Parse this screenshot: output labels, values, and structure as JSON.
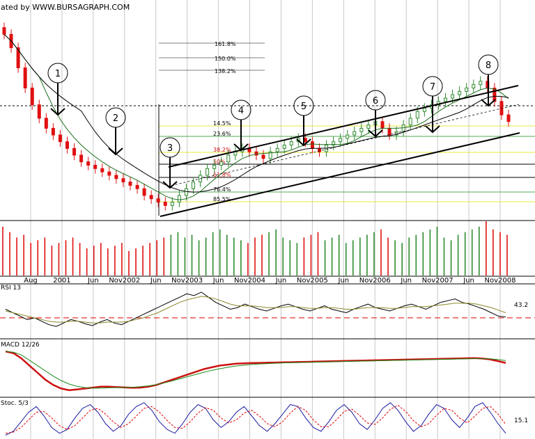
{
  "header": {
    "watermark": "ated by WWW.BURSAGRAPH.COM"
  },
  "panels": {
    "rsi_label": "RSI 13",
    "rsi_value": "43.2",
    "macd_label": "MACD 12/26",
    "stoc_label": "Stoc. 5/3",
    "stoc_value": "15.1"
  },
  "colors": {
    "up_candle": "#2e8b2e",
    "down_candle": "#e01010",
    "ma_short": "#1a6e1a",
    "ma_long": "#000000",
    "fib_lines": "#000000",
    "highlight_lines": "#e8e840",
    "rsi_line": "#000000",
    "rsi_signal": "#8a8a2a",
    "rsi_reference": "#e00000",
    "macd_line": "#cc1111",
    "macd_signal": "#1a8a1a",
    "stoc_k": "#1a1aa0",
    "stoc_d": "#e00000"
  },
  "chart_data": {
    "type": "candlestick",
    "x_ticks": [
      "Aug",
      "2001",
      "Jun",
      "Nov2002",
      "Jun",
      "Nov2003",
      "Jun",
      "Nov2004",
      "Jun",
      "Nov2005",
      "Jun",
      "Nov2006",
      "Jun",
      "Nov2007",
      "Jun",
      "Nov2008"
    ],
    "fib_upper": [
      {
        "label": "161.8%"
      },
      {
        "label": "150.0%"
      },
      {
        "label": "138.2%"
      }
    ],
    "fib_lower": [
      {
        "label": "14.5%"
      },
      {
        "label": "23.6%"
      },
      {
        "label": "38.2%"
      },
      {
        "label": "50%"
      },
      {
        "label": "61.8%"
      },
      {
        "label": "76.4%"
      },
      {
        "label": "85.5%"
      }
    ],
    "wave_markers": [
      "1",
      "2",
      "3",
      "4",
      "5",
      "6",
      "7",
      "8"
    ],
    "closes": [
      86,
      82,
      76,
      70,
      65,
      61,
      58,
      56,
      54,
      52,
      50,
      48,
      47,
      46,
      45,
      44,
      43,
      42,
      41,
      40,
      38,
      37,
      36,
      35,
      36,
      38,
      40,
      42,
      44,
      46,
      47,
      48,
      50,
      51,
      52,
      51,
      50,
      49,
      51,
      52,
      53,
      54,
      55,
      54,
      52,
      51,
      53,
      54,
      55,
      56,
      57,
      58,
      59,
      60,
      58,
      56,
      57,
      59,
      61,
      63,
      64,
      65,
      66,
      67,
      68,
      69,
      70,
      71,
      72,
      70,
      66,
      62,
      60
    ],
    "volume_relative": [
      0.9,
      0.8,
      0.7,
      0.75,
      0.6,
      0.65,
      0.7,
      0.55,
      0.6,
      0.65,
      0.7,
      0.6,
      0.5,
      0.55,
      0.6,
      0.5,
      0.55,
      0.6,
      0.45,
      0.5,
      0.55,
      0.6,
      0.65,
      0.7,
      0.75,
      0.8,
      0.7,
      0.75,
      0.65,
      0.7,
      0.8,
      0.85,
      0.75,
      0.7,
      0.65,
      0.6,
      0.7,
      0.75,
      0.8,
      0.85,
      0.7,
      0.65,
      0.6,
      0.7,
      0.75,
      0.8,
      0.65,
      0.7,
      0.75,
      0.6,
      0.65,
      0.7,
      0.75,
      0.8,
      0.85,
      0.7,
      0.65,
      0.6,
      0.7,
      0.75,
      0.8,
      0.85,
      0.9,
      0.7,
      0.65,
      0.75,
      0.8,
      0.85,
      0.9,
      1.0,
      0.85,
      0.8,
      0.75
    ],
    "rsi": [
      52,
      48,
      44,
      40,
      42,
      38,
      34,
      32,
      36,
      40,
      38,
      35,
      33,
      37,
      40,
      36,
      34,
      38,
      42,
      46,
      50,
      54,
      58,
      62,
      66,
      70,
      68,
      72,
      66,
      60,
      56,
      52,
      54,
      58,
      55,
      52,
      50,
      53,
      56,
      58,
      55,
      52,
      50,
      53,
      56,
      52,
      50,
      48,
      52,
      55,
      58,
      54,
      52,
      50,
      53,
      56,
      58,
      55,
      52,
      56,
      60,
      62,
      64,
      60,
      58,
      55,
      52,
      48,
      44,
      43
    ],
    "rsi_signal": [
      50,
      48,
      46,
      44,
      42,
      40,
      38,
      37,
      37,
      38,
      38,
      37,
      36,
      36,
      37,
      37,
      37,
      38,
      40,
      42,
      45,
      48,
      52,
      56,
      60,
      63,
      65,
      67,
      66,
      64,
      61,
      58,
      56,
      56,
      56,
      55,
      54,
      54,
      54,
      55,
      55,
      54,
      53,
      53,
      54,
      54,
      53,
      52,
      52,
      53,
      54,
      54,
      54,
      53,
      53,
      54,
      55,
      55,
      55,
      56,
      57,
      58,
      59,
      59,
      59,
      58,
      56,
      54,
      51,
      48
    ],
    "macd": [
      0.2,
      0.1,
      -0.2,
      -0.6,
      -1.0,
      -1.4,
      -1.7,
      -1.9,
      -2.0,
      -1.95,
      -1.9,
      -1.85,
      -1.8,
      -1.8,
      -1.82,
      -1.84,
      -1.86,
      -1.85,
      -1.8,
      -1.7,
      -1.55,
      -1.4,
      -1.25,
      -1.1,
      -0.95,
      -0.8,
      -0.7,
      -0.6,
      -0.55,
      -0.5,
      -0.48,
      -0.46,
      -0.45,
      -0.44,
      -0.43,
      -0.42,
      -0.41,
      -0.4,
      -0.39,
      -0.38,
      -0.37,
      -0.36,
      -0.35,
      -0.34,
      -0.33,
      -0.32,
      -0.31,
      -0.3,
      -0.29,
      -0.28,
      -0.27,
      -0.26,
      -0.25,
      -0.24,
      -0.23,
      -0.22,
      -0.21,
      -0.2,
      -0.19,
      -0.18,
      -0.2,
      -0.25,
      -0.35,
      -0.45
    ],
    "macd_signal": [
      0.2,
      0.15,
      0.0,
      -0.3,
      -0.6,
      -0.9,
      -1.2,
      -1.45,
      -1.65,
      -1.78,
      -1.85,
      -1.88,
      -1.88,
      -1.86,
      -1.85,
      -1.84,
      -1.83,
      -1.8,
      -1.75,
      -1.68,
      -1.58,
      -1.47,
      -1.35,
      -1.22,
      -1.1,
      -0.98,
      -0.87,
      -0.78,
      -0.7,
      -0.63,
      -0.58,
      -0.54,
      -0.51,
      -0.49,
      -0.47,
      -0.45,
      -0.44,
      -0.43,
      -0.42,
      -0.41,
      -0.4,
      -0.39,
      -0.38,
      -0.37,
      -0.36,
      -0.35,
      -0.34,
      -0.33,
      -0.32,
      -0.31,
      -0.3,
      -0.29,
      -0.28,
      -0.27,
      -0.26,
      -0.25,
      -0.24,
      -0.23,
      -0.22,
      -0.21,
      -0.21,
      -0.22,
      -0.26,
      -0.32
    ],
    "stoc_k": [
      10,
      20,
      45,
      70,
      85,
      60,
      30,
      15,
      25,
      55,
      80,
      90,
      70,
      40,
      20,
      35,
      65,
      85,
      95,
      75,
      45,
      25,
      15,
      40,
      70,
      90,
      80,
      50,
      30,
      45,
      70,
      85,
      60,
      35,
      20,
      40,
      65,
      90,
      85,
      55,
      30,
      20,
      45,
      75,
      90,
      70,
      40,
      25,
      50,
      80,
      95,
      75,
      45,
      20,
      35,
      65,
      90,
      80,
      50,
      30,
      55,
      85,
      95,
      70,
      40,
      15
    ],
    "stoc_d": [
      15,
      18,
      30,
      50,
      70,
      72,
      55,
      35,
      25,
      35,
      55,
      75,
      80,
      65,
      45,
      30,
      40,
      60,
      80,
      85,
      70,
      48,
      30,
      28,
      45,
      68,
      82,
      75,
      55,
      42,
      50,
      68,
      75,
      60,
      40,
      32,
      45,
      68,
      85,
      75,
      50,
      32,
      32,
      50,
      72,
      78,
      62,
      42,
      38,
      55,
      78,
      88,
      72,
      48,
      32,
      40,
      62,
      80,
      75,
      55,
      42,
      60,
      80,
      85,
      65,
      38
    ]
  }
}
